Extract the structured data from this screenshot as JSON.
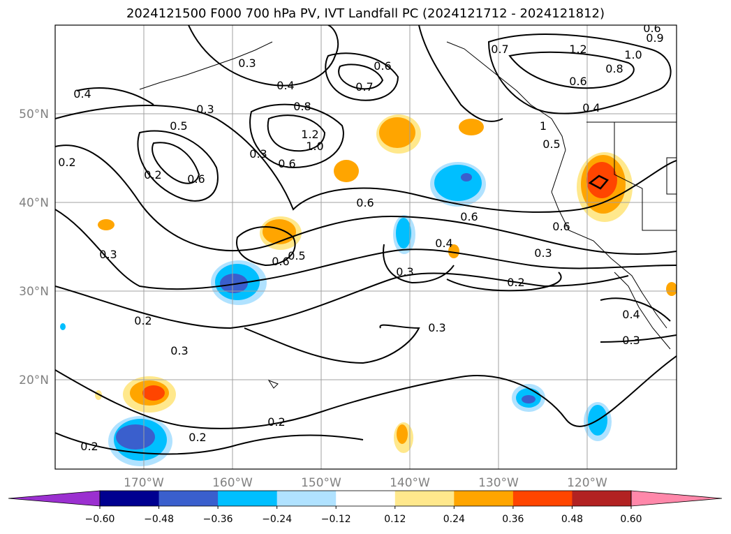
{
  "title": "2024121500 F000 700 hPa PV, IVT Landfall PC (2024121712 - 2024121812)",
  "lon_ticks": [
    "170°W",
    "160°W",
    "150°W",
    "140°W",
    "130°W",
    "120°W"
  ],
  "lat_ticks": [
    "50°N",
    "40°N",
    "30°N",
    "20°N"
  ],
  "colorbar": {
    "labels": [
      "−0.60",
      "−0.48",
      "−0.36",
      "−0.24",
      "−0.12",
      "0.12",
      "0.24",
      "0.36",
      "0.48",
      "0.60"
    ],
    "colors": [
      "#9b30d0",
      "#000090",
      "#3a5fcd",
      "#00bfff",
      "#b0e2ff",
      "#ffffff",
      "#ffe88c",
      "#ffa500",
      "#ff4500",
      "#b22222",
      "#ff88aa"
    ]
  },
  "contour_labels": [
    {
      "name": "contour-label",
      "text": "0.2"
    },
    {
      "name": "contour-label",
      "text": "0.4"
    },
    {
      "name": "contour-label",
      "text": "0.3"
    },
    {
      "name": "contour-label",
      "text": "0.3"
    },
    {
      "name": "contour-label",
      "text": "0.4"
    },
    {
      "name": "contour-label",
      "text": "0.7"
    },
    {
      "name": "contour-label",
      "text": "0.6"
    },
    {
      "name": "contour-label",
      "text": "0.5"
    },
    {
      "name": "contour-label",
      "text": "0.6"
    },
    {
      "name": "contour-label",
      "text": "0.8"
    },
    {
      "name": "contour-label",
      "text": "1.2"
    },
    {
      "name": "contour-label",
      "text": "1.0"
    },
    {
      "name": "contour-label",
      "text": "0.6"
    },
    {
      "name": "contour-label",
      "text": "0.3"
    },
    {
      "name": "contour-label",
      "text": "0.2"
    },
    {
      "name": "contour-label",
      "text": "0.3"
    },
    {
      "name": "contour-label",
      "text": "0.6"
    },
    {
      "name": "contour-label",
      "text": "0.5"
    },
    {
      "name": "contour-label",
      "text": "0.6"
    },
    {
      "name": "contour-label",
      "text": "0.6"
    },
    {
      "name": "contour-label",
      "text": "0.4"
    },
    {
      "name": "contour-label",
      "text": "0.3"
    },
    {
      "name": "contour-label",
      "text": "0.7"
    },
    {
      "name": "contour-label",
      "text": "1.2"
    },
    {
      "name": "contour-label",
      "text": "0.8"
    },
    {
      "name": "contour-label",
      "text": "1.0"
    },
    {
      "name": "contour-label",
      "text": "0.6"
    },
    {
      "name": "contour-label",
      "text": "0.4"
    },
    {
      "name": "contour-label",
      "text": "1"
    },
    {
      "name": "contour-label",
      "text": "0.5"
    },
    {
      "name": "contour-label",
      "text": "0.6"
    },
    {
      "name": "contour-label",
      "text": "0.3"
    },
    {
      "name": "contour-label",
      "text": "0.2"
    },
    {
      "name": "contour-label",
      "text": "0.3"
    },
    {
      "name": "contour-label",
      "text": "0.4"
    },
    {
      "name": "contour-label",
      "text": "0.3"
    },
    {
      "name": "contour-label",
      "text": "0.2"
    },
    {
      "name": "contour-label",
      "text": "0.3"
    },
    {
      "name": "contour-label",
      "text": "0.2"
    },
    {
      "name": "contour-label",
      "text": "0.2"
    },
    {
      "name": "contour-label",
      "text": "0.2"
    },
    {
      "name": "contour-label",
      "text": "0.6"
    },
    {
      "name": "contour-label",
      "text": "0.9"
    }
  ]
}
